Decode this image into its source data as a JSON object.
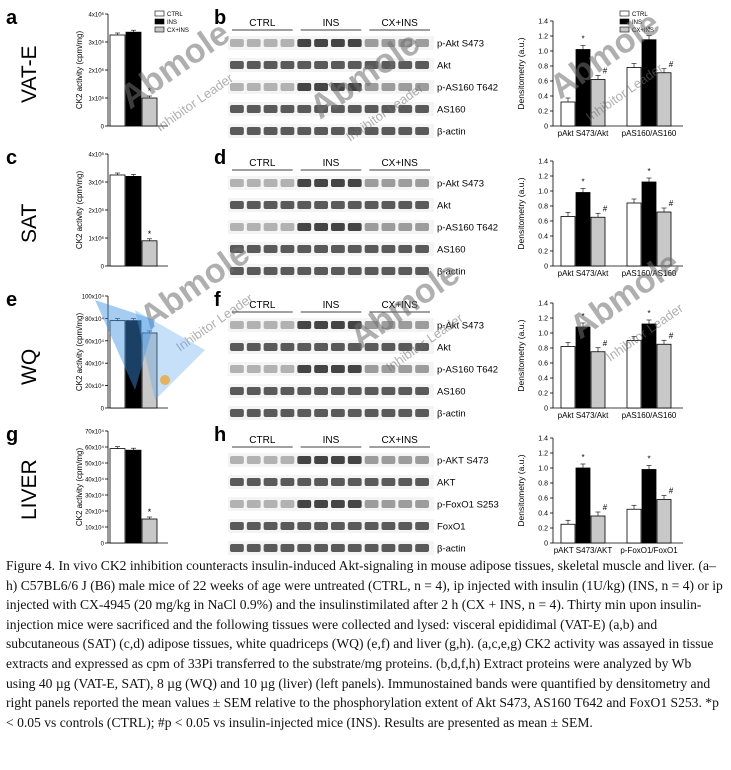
{
  "figure": {
    "rows": [
      {
        "id": "vat",
        "tissue": "VAT-E",
        "activity_panel": "a",
        "blot_panel": "b",
        "ck2_yticks": [
          "0",
          "1x10⁶",
          "2x10⁶",
          "3x10⁶",
          "4x10⁶"
        ],
        "ck2_values": [
          3.25,
          3.35,
          1.0
        ],
        "ck2_ymax": 4,
        "ck2_marks": [
          "",
          "",
          "*"
        ],
        "blot_labels": [
          "p-Akt S473",
          "Akt",
          "p-AS160 T642",
          "AS160",
          "β-actin"
        ],
        "dens_yticks": [
          "0",
          "0.2",
          "0.4",
          "0.6",
          "0.8",
          "1.0",
          "1.2",
          "1.4"
        ],
        "dens_groups": [
          {
            "label": "pAkt S473/Akt",
            "values": [
              0.32,
              1.02,
              0.62
            ],
            "marks": [
              "",
              "*",
              "#"
            ]
          },
          {
            "label": "pAS160/AS160",
            "values": [
              0.78,
              1.15,
              0.71
            ],
            "marks": [
              "",
              "*",
              "#"
            ]
          }
        ]
      },
      {
        "id": "sat",
        "tissue": "SAT",
        "activity_panel": "c",
        "blot_panel": "d",
        "ck2_yticks": [
          "0",
          "1x10⁶",
          "2x10⁶",
          "3x10⁶",
          "4x10⁶"
        ],
        "ck2_values": [
          3.25,
          3.2,
          0.9
        ],
        "ck2_ymax": 4,
        "ck2_marks": [
          "",
          "",
          "*"
        ],
        "blot_labels": [
          "p-Akt S473",
          "Akt",
          "p-AS160 T642",
          "AS160",
          "β-actin"
        ],
        "dens_yticks": [
          "0",
          "0.2",
          "0.4",
          "0.6",
          "0.8",
          "1.0",
          "1.2",
          "1.4"
        ],
        "dens_groups": [
          {
            "label": "pAkt S473/Akt",
            "values": [
              0.66,
              0.98,
              0.65
            ],
            "marks": [
              "",
              "*",
              "#"
            ]
          },
          {
            "label": "pAS160/AS160",
            "values": [
              0.84,
              1.12,
              0.72
            ],
            "marks": [
              "",
              "*",
              "#"
            ]
          }
        ]
      },
      {
        "id": "wq",
        "tissue": "WQ",
        "activity_panel": "e",
        "blot_panel": "f",
        "ck2_yticks": [
          "0",
          "20x10⁴",
          "40x10⁴",
          "60x10⁴",
          "80x10⁴",
          "100x10⁴"
        ],
        "ck2_values": [
          78,
          78,
          67
        ],
        "ck2_ymax": 100,
        "ck2_marks": [
          "",
          "",
          ""
        ],
        "blot_labels": [
          "p-Akt S473",
          "Akt",
          "p-AS160 T642",
          "AS160",
          "β-actin"
        ],
        "dens_yticks": [
          "0",
          "0.2",
          "0.4",
          "0.6",
          "0.8",
          "1.0",
          "1.2",
          "1.4"
        ],
        "dens_groups": [
          {
            "label": "pAkt S473/Akt",
            "values": [
              0.82,
              1.08,
              0.75
            ],
            "marks": [
              "",
              "*",
              "#"
            ]
          },
          {
            "label": "pAS160/AS160",
            "values": [
              0.9,
              1.12,
              0.85
            ],
            "marks": [
              "",
              "*",
              "#"
            ]
          }
        ]
      },
      {
        "id": "liver",
        "tissue": "LIVER",
        "activity_panel": "g",
        "blot_panel": "h",
        "ck2_yticks": [
          "0",
          "10x10⁴",
          "20x10⁴",
          "30x10⁴",
          "40x10⁴",
          "50x10⁴",
          "60x10⁴",
          "70x10⁴"
        ],
        "ck2_values": [
          59,
          58,
          15
        ],
        "ck2_ymax": 70,
        "ck2_marks": [
          "",
          "",
          "*"
        ],
        "blot_labels": [
          "p-AKT S473",
          "AKT",
          "p-FoxO1 S253",
          "FoxO1",
          "β-actin"
        ],
        "dens_yticks": [
          "0",
          "0.2",
          "0.4",
          "0.6",
          "0.8",
          "1.0",
          "1.2",
          "1.4"
        ],
        "dens_groups": [
          {
            "label": "pAKT S473/AKT",
            "values": [
              0.25,
              1.0,
              0.36
            ],
            "marks": [
              "",
              "*",
              "#"
            ]
          },
          {
            "label": "p-FoxO1/FoxO1",
            "values": [
              0.45,
              0.98,
              0.58
            ],
            "marks": [
              "",
              "*",
              "#"
            ]
          }
        ]
      }
    ],
    "ck2_ylabel": "CK2 activity (cpm/mg)",
    "dens_ylabel": "Densitometry (a.u.)",
    "group_headers": [
      "CTRL",
      "INS",
      "CX+INS"
    ],
    "legend": [
      "CTRL",
      "INS",
      "CX+INS"
    ],
    "bar_colors": [
      "#ffffff",
      "#000000",
      "#c8c8c8"
    ]
  },
  "watermark": {
    "text": "Abmole",
    "subtext": "Inhibitor Leader"
  },
  "caption": "Figure 4. In vivo CK2 inhibition counteracts insulin-induced Akt-signaling in mouse adipose tissues, skeletal muscle and liver. (a–h) C57BL6/6 J (B6) male mice of 22 weeks of age were untreated (CTRL, n = 4), ip injected with insulin (1U/kg) (INS, n = 4) or ip injected with CX-4945 (20 mg/kg in NaCl 0.9%) and the insulinstimilated after 2 h (CX + INS, n = 4). Thirty min upon insulin-injection mice were sacrificed and the following tissues were collected and lysed: visceral epididimal (VAT-E) (a,b) and subcutaneous (SAT) (c,d) adipose tissues, white quadriceps (WQ) (e,f) and liver (g,h). (a,c,e,g) CK2 activity was assayed in tissue extracts and expressed as cpm of 33Pi transferred to the substrate/mg proteins. (b,d,f,h) Extract proteins were analyzed by Wb using 40 µg (VAT-E, SAT), 8 µg (WQ) and 10 µg (liver) (left panels). Immunostained bands were quantified by densitometry and right panels reported the mean values ± SEM relative to the phosphorylation extent of Akt S473, AS160 T642 and FoxO1 S253. *p < 0.05 vs controls (CTRL); #p < 0.05 vs insulin-injected mice (INS). Results are presented as mean ± SEM."
}
